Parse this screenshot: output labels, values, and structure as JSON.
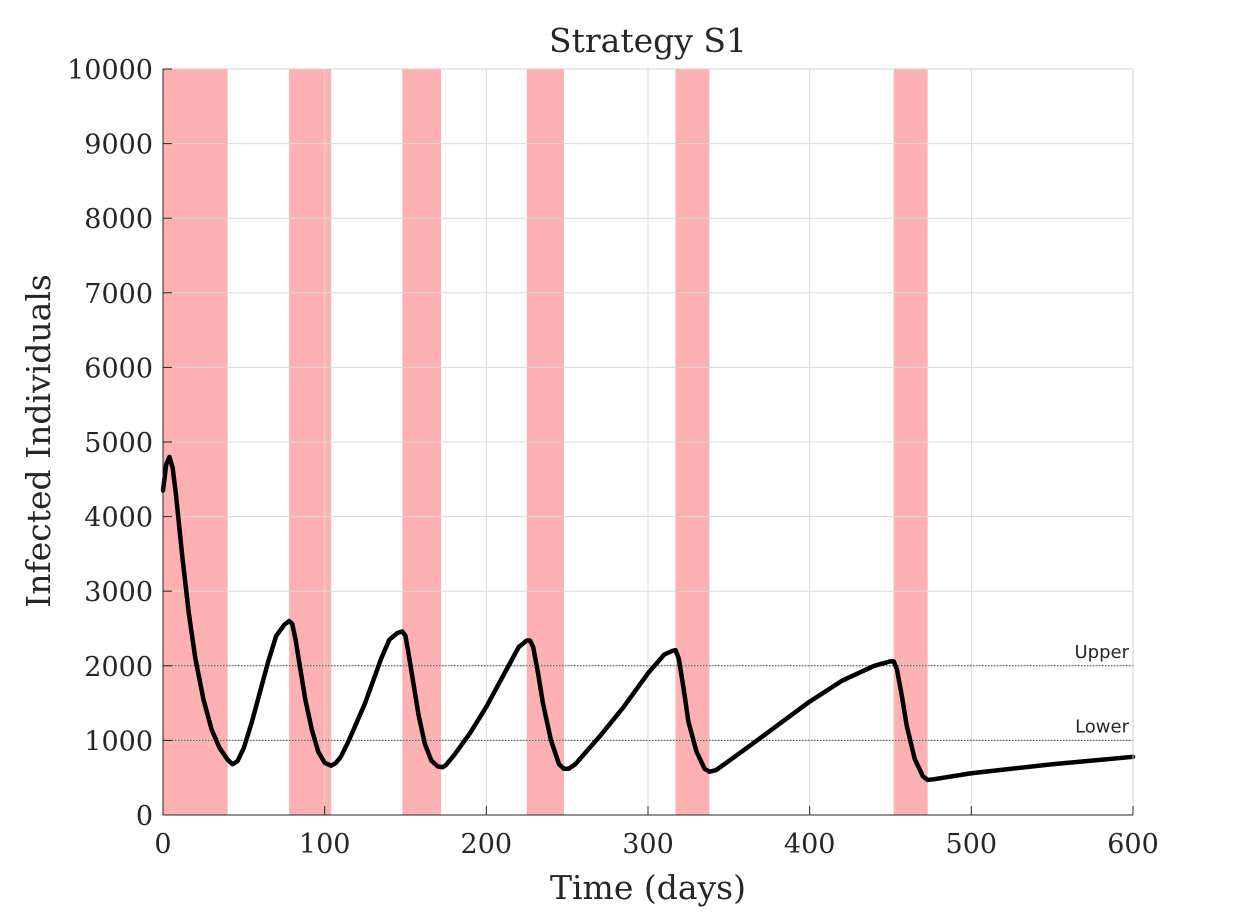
{
  "chart_data": {
    "type": "line",
    "title": "Strategy S1",
    "xlabel": "Time (days)",
    "ylabel": "Infected Individuals",
    "xlim": [
      0,
      600
    ],
    "ylim": [
      0,
      10000
    ],
    "xticks": [
      0,
      100,
      200,
      300,
      400,
      500,
      600
    ],
    "yticks": [
      0,
      1000,
      2000,
      3000,
      4000,
      5000,
      6000,
      7000,
      8000,
      9000,
      10000
    ],
    "grid": true,
    "colors": {
      "line": "#000000",
      "band": "#fdb1b3",
      "grid": "#d9d9d9",
      "threshold": "#4d4d4d"
    },
    "thresholds": [
      {
        "label": "Upper",
        "value": 2000
      },
      {
        "label": "Lower",
        "value": 1000
      }
    ],
    "intervention_bands": [
      [
        0,
        40
      ],
      [
        78,
        104
      ],
      [
        148,
        172
      ],
      [
        225,
        248
      ],
      [
        317,
        338
      ],
      [
        452,
        473
      ]
    ],
    "series": [
      {
        "x": [
          0,
          2,
          4,
          6,
          8,
          12,
          16,
          20,
          25,
          30,
          35,
          40,
          43,
          46,
          50,
          55,
          60,
          65,
          70,
          75,
          78,
          80,
          82,
          85,
          88,
          92,
          96,
          100,
          104,
          107,
          110,
          115,
          120,
          125,
          130,
          135,
          140,
          145,
          148,
          150,
          152,
          155,
          158,
          162,
          166,
          170,
          173,
          175,
          180,
          190,
          200,
          210,
          220,
          225,
          227,
          229,
          232,
          235,
          240,
          245,
          248,
          251,
          255,
          270,
          285,
          300,
          310,
          315,
          317,
          319,
          322,
          325,
          330,
          335,
          338,
          342,
          360,
          380,
          400,
          420,
          440,
          450,
          452,
          454,
          457,
          460,
          465,
          470,
          473,
          477,
          500,
          550,
          600
        ],
        "y": [
          4350,
          4700,
          4800,
          4650,
          4300,
          3450,
          2700,
          2100,
          1550,
          1150,
          900,
          740,
          680,
          720,
          900,
          1250,
          1650,
          2050,
          2400,
          2550,
          2600,
          2560,
          2350,
          1950,
          1550,
          1150,
          850,
          700,
          660,
          700,
          780,
          1000,
          1250,
          1500,
          1800,
          2100,
          2350,
          2440,
          2460,
          2400,
          2150,
          1750,
          1350,
          950,
          730,
          650,
          640,
          670,
          800,
          1100,
          1450,
          1850,
          2250,
          2340,
          2340,
          2250,
          1900,
          1500,
          1000,
          680,
          620,
          620,
          680,
          1050,
          1450,
          1900,
          2150,
          2200,
          2210,
          2100,
          1700,
          1250,
          850,
          620,
          580,
          600,
          880,
          1200,
          1520,
          1800,
          2000,
          2060,
          2060,
          1950,
          1600,
          1200,
          750,
          520,
          470,
          480,
          560,
          680,
          780
        ]
      }
    ]
  }
}
